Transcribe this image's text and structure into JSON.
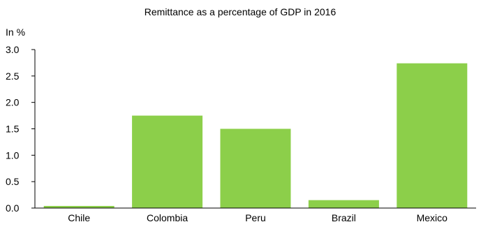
{
  "chart_data": {
    "type": "bar",
    "title": "Remittance as a percentage of GDP in 2016",
    "ylabel": "In %",
    "xlabel": "",
    "categories": [
      "Chile",
      "Colombia",
      "Peru",
      "Brazil",
      "Mexico"
    ],
    "values": [
      0.04,
      1.75,
      1.5,
      0.15,
      2.74
    ],
    "ylim": [
      0,
      3.0
    ],
    "yticks": [
      "0.0",
      "0.5",
      "1.0",
      "1.5",
      "2.0",
      "2.5",
      "3.0"
    ],
    "grid": false,
    "legend": "none",
    "bar_color": "#8ccf4a",
    "axis_color": "#000000"
  }
}
